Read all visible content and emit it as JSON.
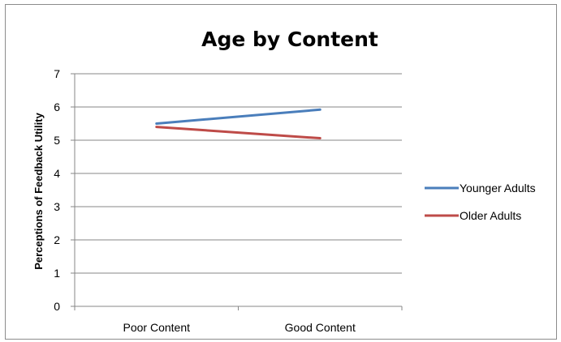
{
  "chart_data": {
    "type": "line",
    "title": "Age by Content",
    "xlabel": "",
    "ylabel": "Perceptions of Feedback Utility",
    "categories": [
      "Poor Content",
      "Good Content"
    ],
    "ylim": [
      0,
      7
    ],
    "yticks": [
      0,
      1,
      2,
      3,
      4,
      5,
      6,
      7
    ],
    "grid": true,
    "legend_position": "right",
    "series": [
      {
        "name": "Younger Adults",
        "values": [
          5.5,
          5.92
        ],
        "color": "#4a7ebb"
      },
      {
        "name": "Older Adults",
        "values": [
          5.4,
          5.06
        ],
        "color": "#be4b48"
      }
    ]
  }
}
